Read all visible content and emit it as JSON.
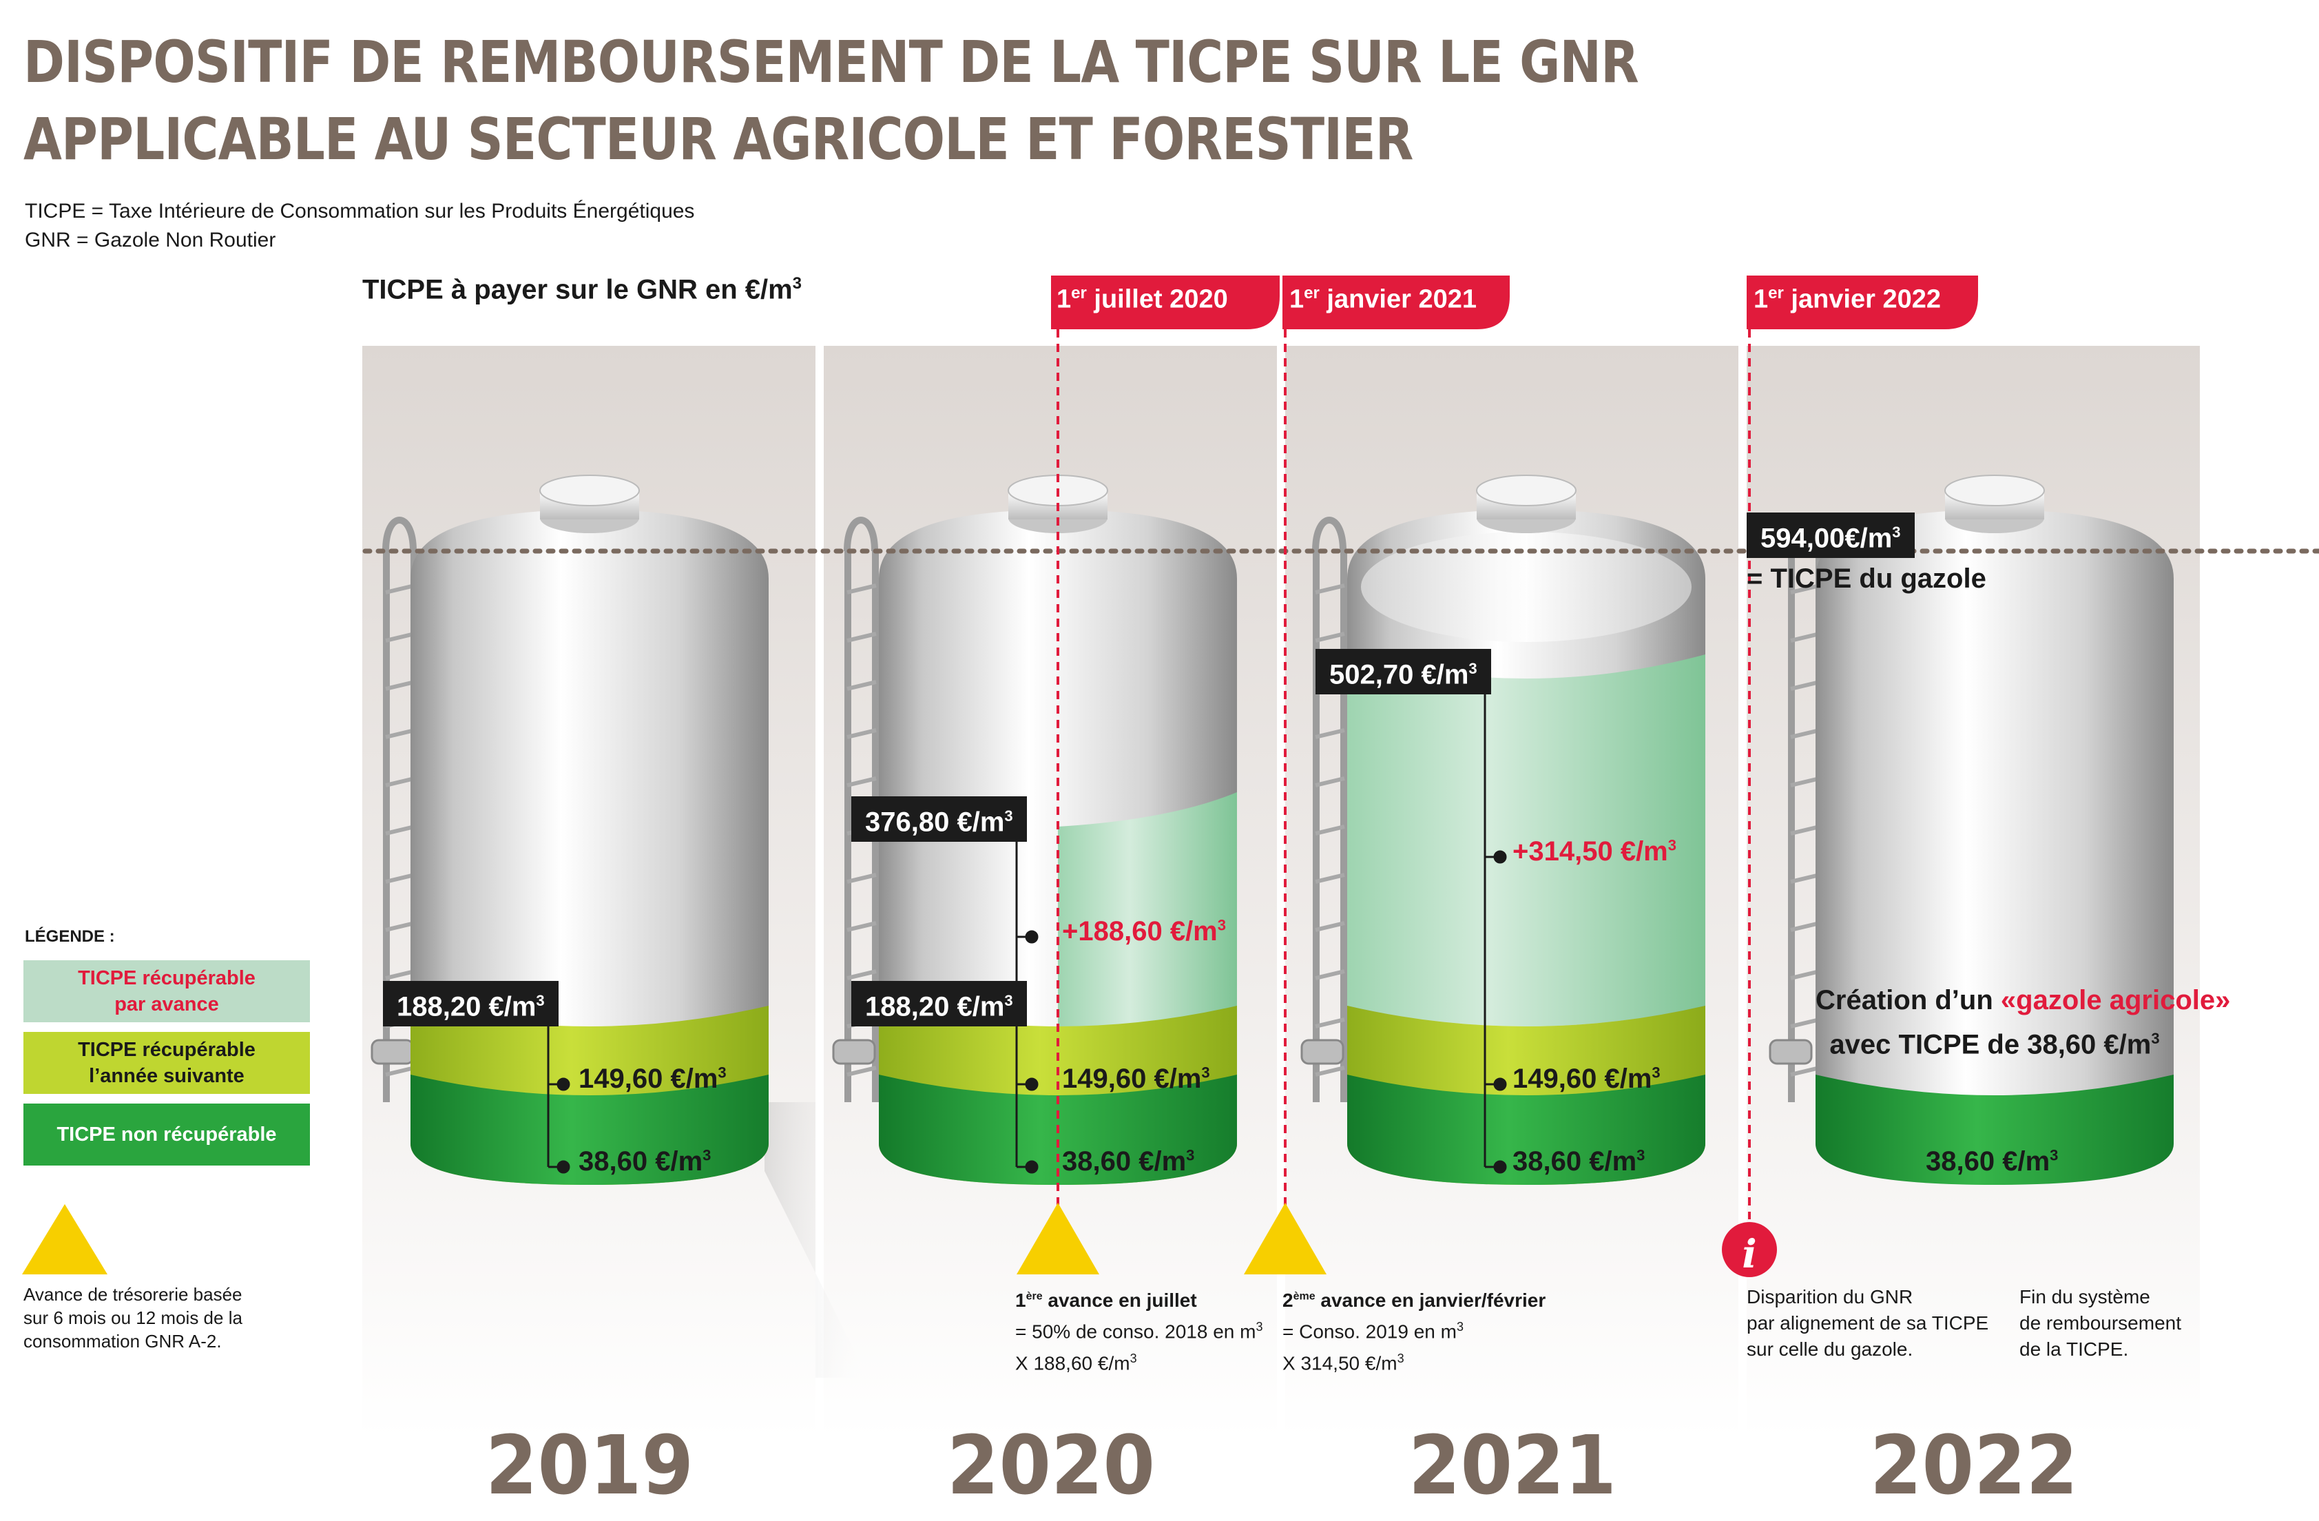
{
  "title": {
    "line1": "DISPOSITIF DE REMBOURSEMENT DE LA TICPE SUR LE GNR",
    "line2": "APPLICABLE AU SECTEUR AGRICOLE ET FORESTIER"
  },
  "definitions": {
    "ticpe": "TICPE = Taxe Intérieure de Consommation sur les Produits Énergétiques",
    "gnr": "GNR = Gazole Non Routier"
  },
  "subtitle": {
    "text": "TICPE à payer sur le GNR en €/m",
    "sup": "3"
  },
  "colors": {
    "title": "#7a6a5f",
    "accent_red": "#e11b3c",
    "green_light": "#bcdcc7",
    "green_yellow": "#bfd630",
    "green_dark": "#2aa53e"
  },
  "flags": [
    {
      "sup": "er",
      "pre": "1",
      "text": " juillet 2020"
    },
    {
      "sup": "er",
      "pre": "1",
      "text": " janvier 2021"
    },
    {
      "sup": "er",
      "pre": "1",
      "text": " janvier 2022"
    }
  ],
  "unit_sup": "3",
  "tank2019": {
    "total": "188,20 €/m",
    "recup_suivante": "149,60 €/m",
    "non_recup": "38,60 €/m"
  },
  "tank2020": {
    "total": "376,80 €/m",
    "avance": "+188,60 €/m",
    "base": "188,20 €/m",
    "recup_suivante": "149,60 €/m",
    "non_recup": "38,60 €/m"
  },
  "tank2021": {
    "total": "502,70 €/m",
    "avance": "+314,50 €/m",
    "recup_suivante": "149,60 €/m",
    "non_recup": "38,60 €/m"
  },
  "tank2022": {
    "total": "594,00€/m",
    "total_note": "= TICPE du gazole",
    "creation_pre": "Création d’un ",
    "creation_red": "«gazole agricole»",
    "creation_line2": "avec TICPE de 38,60 €/m",
    "non_recup": "38,60 €/m"
  },
  "legend": {
    "title": "LÉGENDE :",
    "items": [
      {
        "line1": "TICPE récupérable",
        "line2": "par avance"
      },
      {
        "line1": "TICPE récupérable",
        "line2": "l’année suivante"
      },
      {
        "line1": "TICPE non récupérable",
        "line2": ""
      }
    ],
    "advance_note": [
      "Avance de trésorerie basée",
      "sur 6 mois ou 12 mois de la",
      "consommation GNR A-2."
    ]
  },
  "notes": {
    "n2020": {
      "pre": "1",
      "sup": "ère",
      "bold": " avance en juillet",
      "l2": "= 50% de conso. 2018 en m",
      "l3": "X 188,60 €/m"
    },
    "n2021": {
      "pre": "2",
      "sup": "ème",
      "bold": " avance en janvier/février",
      "l2": "= Conso. 2019 en m",
      "l3": "X 314,50 €/m"
    },
    "n2022a": [
      "Disparition du GNR",
      "par alignement de sa TICPE",
      "sur celle du gazole."
    ],
    "n2022b": [
      "Fin du système",
      "de remboursement",
      "de la TICPE."
    ],
    "info_icon": "i"
  },
  "years": [
    "2019",
    "2020",
    "2021",
    "2022"
  ]
}
